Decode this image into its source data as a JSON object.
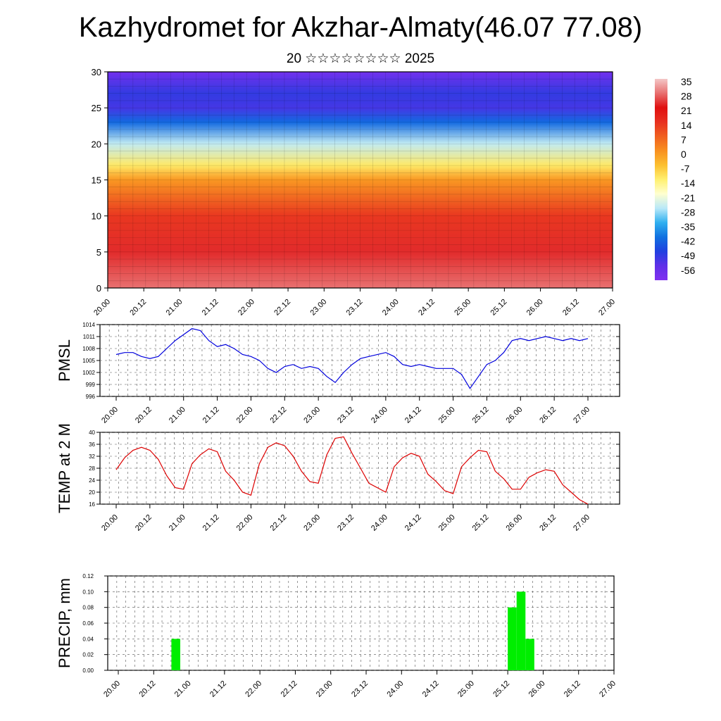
{
  "title": "Kazhydromet for Akzhar-Almaty(46.07 77.08)",
  "subtitle": "20 ☆☆☆☆☆☆☆☆ 2025",
  "colors": {
    "pmsl_line": "#0000dd",
    "temp_line": "#dd0000",
    "precip_bar": "#00ee00",
    "grid": "#555555"
  },
  "chart_data": [
    {
      "type": "heatmap",
      "name": "cross-section",
      "x_tick_labels": [
        "20.00",
        "20.12",
        "21.00",
        "21.12",
        "22.00",
        "22.12",
        "23.00",
        "23.12",
        "24.00",
        "24.12",
        "25.00",
        "25.12",
        "26.00",
        "26.12",
        "27.00"
      ],
      "y_tick_labels": [
        "0",
        "5",
        "10",
        "15",
        "20",
        "25",
        "30"
      ],
      "ylim": [
        0,
        30
      ],
      "colorbar_labels": [
        "35",
        "28",
        "21",
        "14",
        "7",
        "0",
        "-7",
        "-14",
        "-21",
        "-28",
        "-35",
        "-42",
        "-49",
        "-56"
      ],
      "colorbar_range": [
        -60,
        38
      ],
      "colorbar_stops": [
        "#f4c7c7",
        "#e87070",
        "#e01010",
        "#e83020",
        "#f06020",
        "#f89020",
        "#fcc030",
        "#fff070",
        "#ffffd0",
        "#b8e8f8",
        "#30b0f0",
        "#1070e0",
        "#2040e0",
        "#6030e8",
        "#8030f0"
      ],
      "temperature_profile": [
        {
          "level": 0,
          "value": 31
        },
        {
          "level": 5,
          "value": 26
        },
        {
          "level": 10,
          "value": 16
        },
        {
          "level": 15,
          "value": 2
        },
        {
          "level": 17,
          "value": -10
        },
        {
          "level": 20,
          "value": -24
        },
        {
          "level": 23,
          "value": -40
        },
        {
          "level": 25,
          "value": -50
        },
        {
          "level": 27,
          "value": -48
        },
        {
          "level": 30,
          "value": -57
        }
      ]
    },
    {
      "type": "line",
      "name": "PMSL",
      "ylabel": "PMSL",
      "ylim": [
        996,
        1014
      ],
      "y_ticks": [
        996,
        999,
        1002,
        1005,
        1008,
        1011,
        1014
      ],
      "x_tick_labels": [
        "20.00",
        "20.12",
        "21.00",
        "21.12",
        "22.00",
        "22.12",
        "23.00",
        "23.12",
        "24.00",
        "24.12",
        "25.00",
        "25.12",
        "26.00",
        "26.12",
        "27.00"
      ],
      "x": [
        0,
        3,
        6,
        9,
        12,
        15,
        18,
        21,
        24,
        27,
        30,
        33,
        36,
        39,
        42,
        45,
        48,
        51,
        54,
        57,
        60,
        63,
        66,
        69,
        72,
        75,
        78,
        81,
        84,
        87,
        90,
        96,
        99,
        102,
        105,
        108,
        111,
        114,
        117,
        120,
        123,
        126,
        129,
        132,
        135,
        138,
        141,
        144,
        147,
        150,
        153,
        156,
        159,
        162,
        165,
        168
      ],
      "values": [
        1006.5,
        1007,
        1007,
        1006,
        1005.5,
        1006,
        1008,
        1010,
        1011.5,
        1013,
        1012.5,
        1010,
        1008.5,
        1009,
        1008,
        1006.5,
        1006,
        1005,
        1003,
        1002,
        1003.5,
        1004,
        1003,
        1003.5,
        1003,
        1001,
        999.5,
        1002,
        1004,
        1005.5,
        1006,
        1007,
        1006,
        1004,
        1003.5,
        1004,
        1003.5,
        1003,
        1003,
        1003,
        1001.5,
        998,
        1001,
        1004,
        1005,
        1007,
        1010,
        1010.5,
        1010,
        1010.5,
        1011,
        1010.5,
        1010,
        1010.5,
        1010,
        1010.5
      ]
    },
    {
      "type": "line",
      "name": "TEMP",
      "ylabel": "TEMP at 2 M",
      "ylim": [
        16,
        40
      ],
      "y_ticks": [
        16,
        20,
        24,
        28,
        32,
        36,
        40
      ],
      "x_tick_labels": [
        "20.00",
        "20.12",
        "21.00",
        "21.12",
        "22.00",
        "22.12",
        "23.00",
        "23.12",
        "24.00",
        "24.12",
        "25.00",
        "25.12",
        "26.00",
        "26.12",
        "27.00"
      ],
      "x": [
        0,
        3,
        6,
        9,
        12,
        15,
        18,
        21,
        24,
        27,
        30,
        33,
        36,
        39,
        42,
        45,
        48,
        51,
        54,
        57,
        60,
        63,
        66,
        69,
        72,
        75,
        78,
        81,
        84,
        87,
        90,
        96,
        99,
        102,
        105,
        108,
        111,
        114,
        117,
        120,
        123,
        126,
        129,
        132,
        135,
        138,
        141,
        144,
        147,
        150,
        153,
        156,
        159,
        162,
        165,
        168
      ],
      "values": [
        27.5,
        31.5,
        34,
        35,
        34,
        31,
        25.5,
        21.5,
        21,
        29.5,
        32.5,
        34.5,
        33.5,
        27,
        24,
        20,
        19,
        29.5,
        35,
        36.5,
        35.5,
        32,
        27,
        23.5,
        23,
        32.5,
        38,
        38.5,
        33,
        28,
        23,
        20,
        28.5,
        31.5,
        33,
        32,
        26,
        23.5,
        20.5,
        19.5,
        28.5,
        31.5,
        34,
        33.5,
        27,
        24.5,
        21,
        21,
        25,
        26.5,
        27.5,
        27,
        22.5,
        20,
        17.5,
        16
      ]
    },
    {
      "type": "bar",
      "name": "PRECIP",
      "ylabel": "PRECIP, mm",
      "ylim": [
        0,
        0.12
      ],
      "y_tick_labels": [
        "0.00",
        "0.02",
        "0.04",
        "0.06",
        "0.08",
        "0.10",
        "0.12"
      ],
      "x_tick_labels": [
        "20.00",
        "20.12",
        "21.00",
        "21.12",
        "22.00",
        "22.12",
        "23.00",
        "23.12",
        "24.00",
        "24.12",
        "25.00",
        "25.12",
        "26.00",
        "26.12",
        "27.00"
      ],
      "bars": [
        {
          "start": 18,
          "end": 21,
          "value": 0.04
        },
        {
          "start": 132,
          "end": 135,
          "value": 0.08
        },
        {
          "start": 135,
          "end": 138,
          "value": 0.1
        },
        {
          "start": 138,
          "end": 141,
          "value": 0.04
        }
      ]
    }
  ]
}
